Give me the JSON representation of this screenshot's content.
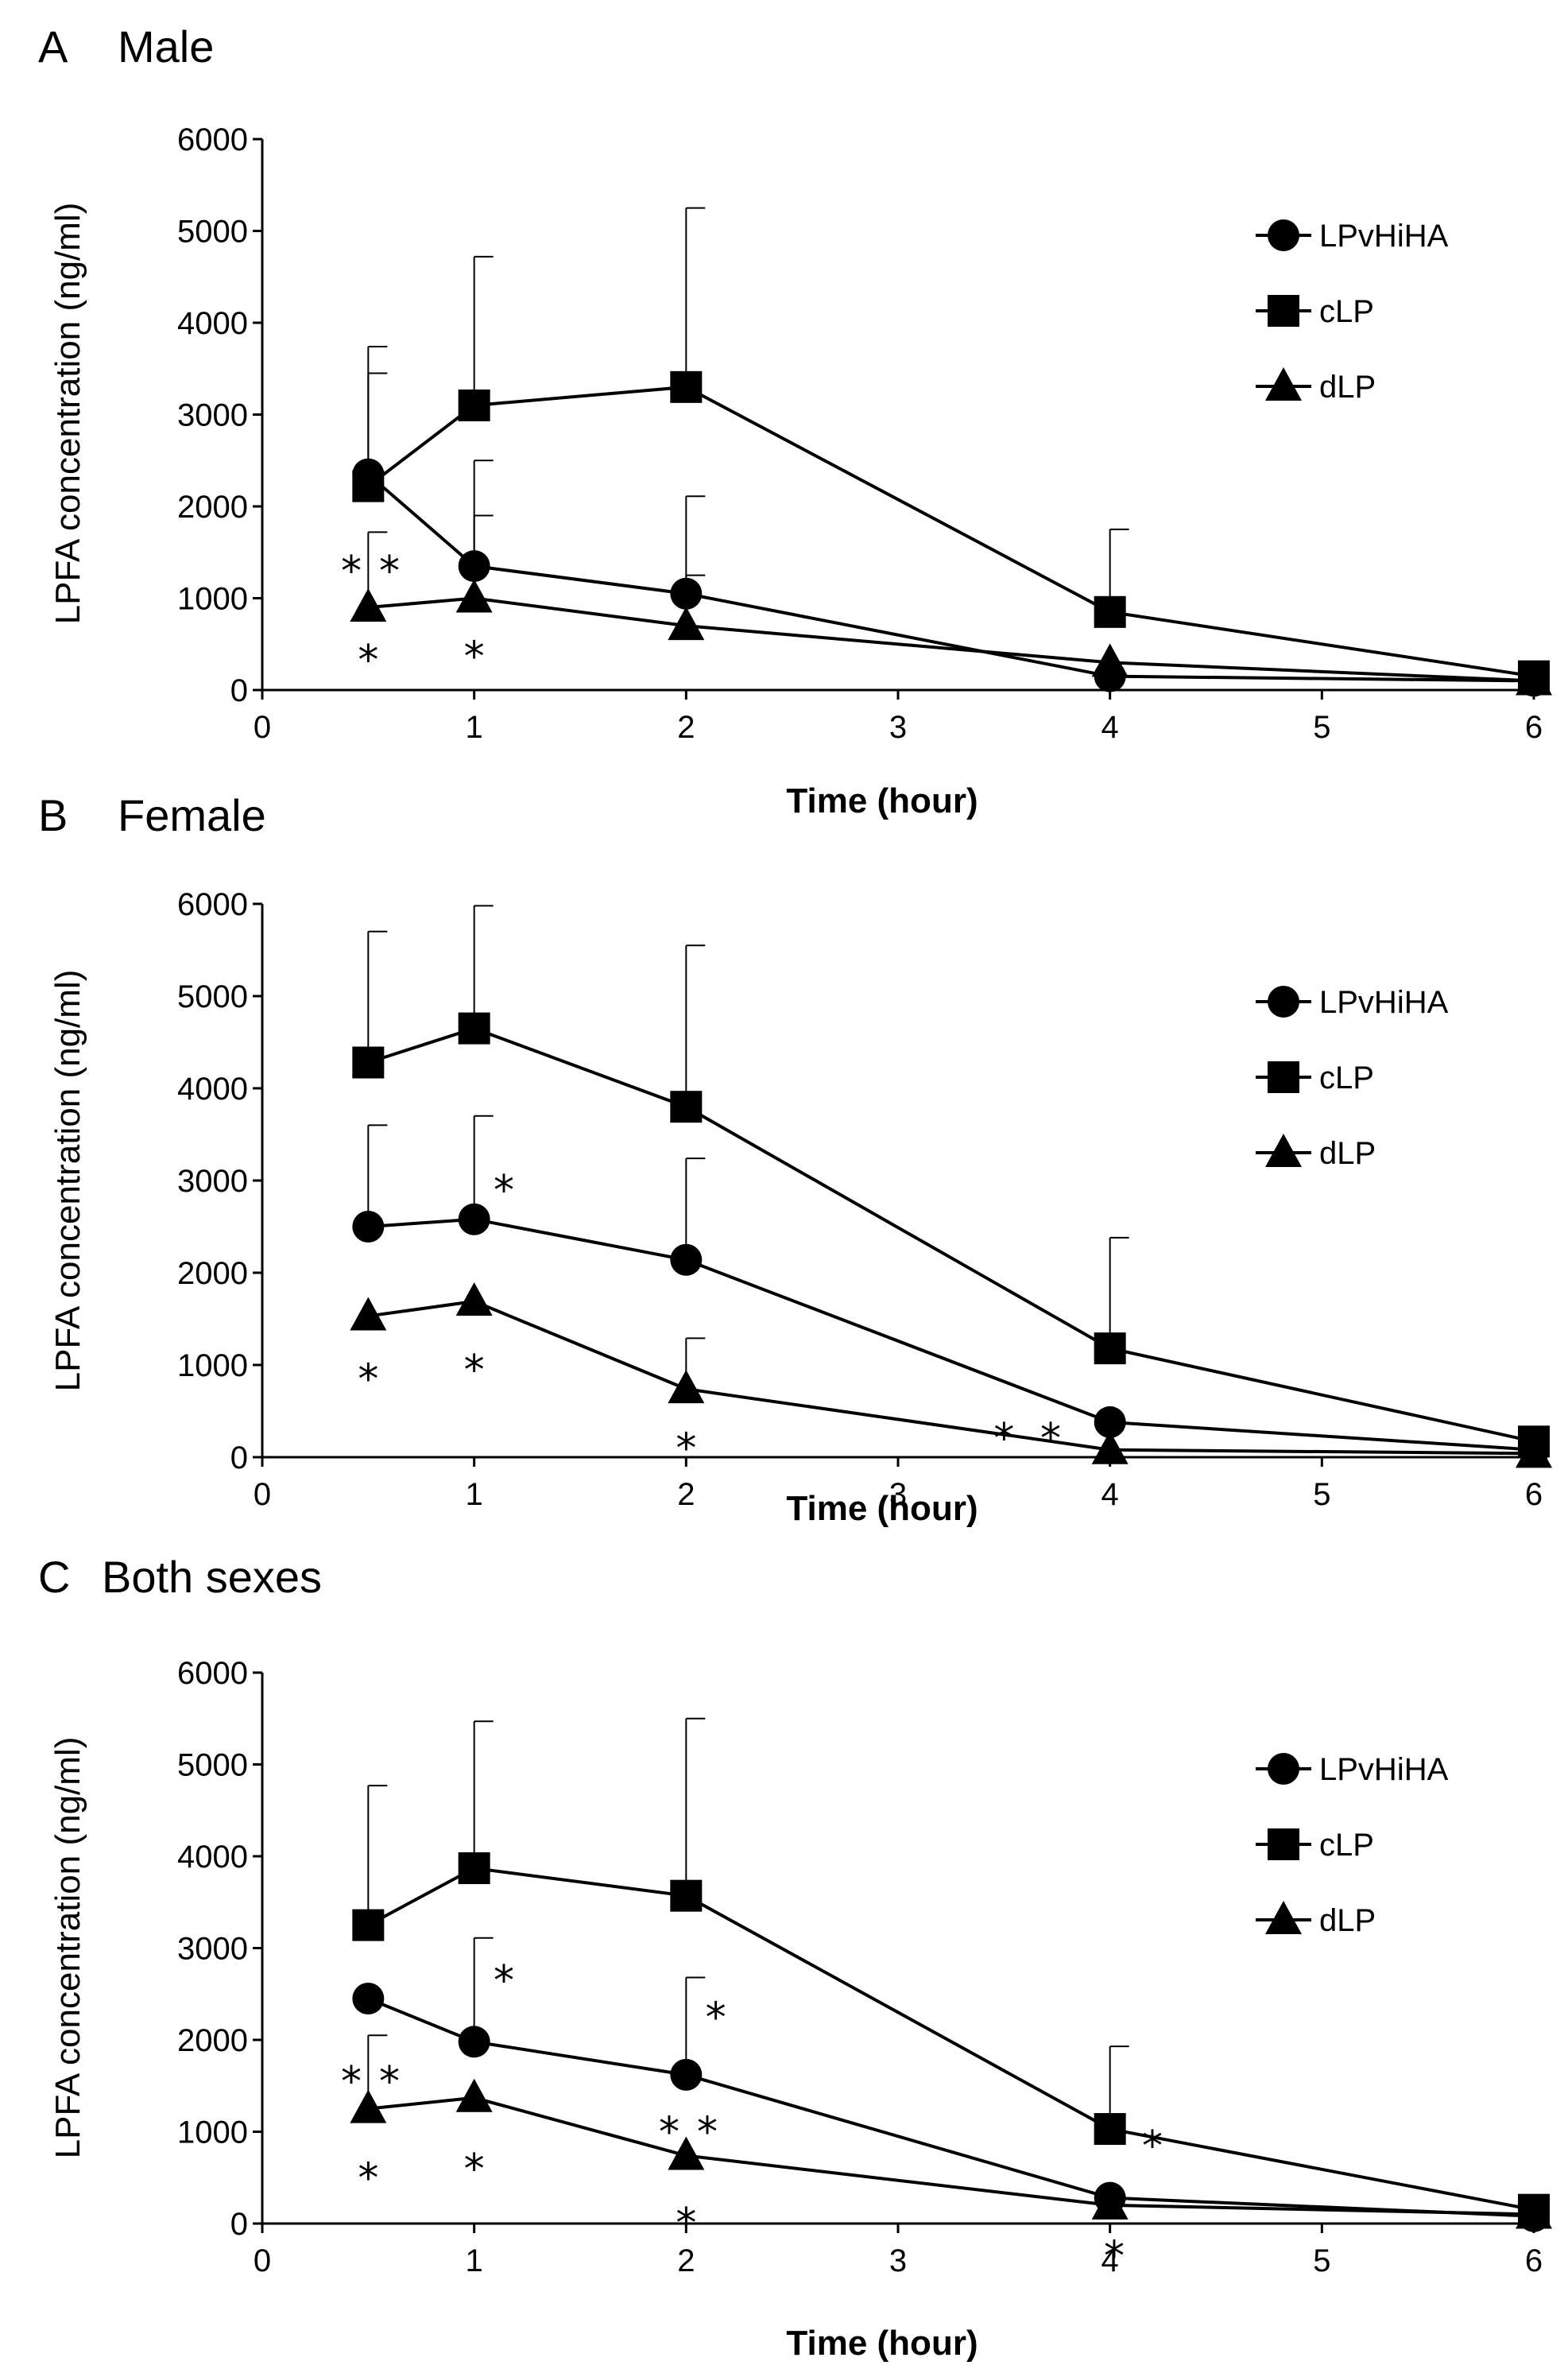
{
  "figure": {
    "panels": [
      {
        "letter": "A",
        "title": "Male"
      },
      {
        "letter": "B",
        "title": "Female"
      },
      {
        "letter": "C",
        "title": "Both sexes"
      }
    ]
  },
  "chart_data": [
    {
      "type": "line",
      "title": "A Male",
      "xlabel": "Time (hour)",
      "ylabel": "LPFA concentration (ng/ml)",
      "xlim": [
        0,
        6
      ],
      "ylim": [
        0,
        6000
      ],
      "x_ticks": [
        0,
        1,
        2,
        3,
        4,
        5,
        6
      ],
      "y_ticks": [
        0,
        1000,
        2000,
        3000,
        4000,
        5000,
        6000
      ],
      "grid": false,
      "legend_position": "top-right",
      "x": [
        0.5,
        1,
        2,
        4,
        6
      ],
      "series": [
        {
          "name": "LPvHiHA",
          "marker": "circle",
          "values": [
            2350,
            1350,
            1050,
            150,
            100
          ],
          "error": [
            1100,
            1150,
            1060,
            0,
            0
          ]
        },
        {
          "name": "cLP",
          "marker": "square",
          "values": [
            2220,
            3100,
            3300,
            850,
            150
          ],
          "error": [
            1520,
            1620,
            1950,
            900,
            0
          ]
        },
        {
          "name": "dLP",
          "marker": "triangle",
          "values": [
            900,
            1000,
            700,
            300,
            100
          ],
          "error": [
            820,
            900,
            550,
            0,
            0
          ]
        }
      ],
      "annotations": [
        {
          "text": "*",
          "x": 0.42,
          "y": 1350
        },
        {
          "text": "*",
          "x": 0.6,
          "y": 1350
        },
        {
          "text": "*",
          "x": 0.5,
          "y": 380
        },
        {
          "text": "*",
          "x": 1.0,
          "y": 420
        }
      ]
    },
    {
      "type": "line",
      "title": "B Female",
      "xlabel": "Time (hour)",
      "ylabel": "LPFA concentration (ng/ml)",
      "xlim": [
        0,
        6
      ],
      "ylim": [
        0,
        6000
      ],
      "x_ticks": [
        0,
        1,
        2,
        3,
        4,
        5,
        6
      ],
      "y_ticks": [
        0,
        1000,
        2000,
        3000,
        4000,
        5000,
        6000
      ],
      "grid": false,
      "legend_position": "top-right",
      "x": [
        0.5,
        1,
        2,
        4,
        6
      ],
      "series": [
        {
          "name": "LPvHiHA",
          "marker": "circle",
          "values": [
            2500,
            2580,
            2140,
            380,
            80
          ],
          "error": [
            1100,
            1120,
            1100,
            0,
            0
          ]
        },
        {
          "name": "cLP",
          "marker": "square",
          "values": [
            4280,
            4650,
            3800,
            1180,
            170
          ],
          "error": [
            1420,
            1330,
            1750,
            1200,
            0
          ]
        },
        {
          "name": "dLP",
          "marker": "triangle",
          "values": [
            1530,
            1690,
            740,
            80,
            40
          ],
          "error": [
            0,
            0,
            550,
            0,
            0
          ]
        }
      ],
      "annotations": [
        {
          "text": "*",
          "x": 1.14,
          "y": 2950
        },
        {
          "text": "*",
          "x": 0.5,
          "y": 900
        },
        {
          "text": "*",
          "x": 1.0,
          "y": 1000
        },
        {
          "text": "*",
          "x": 2.0,
          "y": 150
        },
        {
          "text": "*",
          "x": 3.5,
          "y": 260
        },
        {
          "text": "*",
          "x": 3.72,
          "y": 260
        }
      ]
    },
    {
      "type": "line",
      "title": "C Both sexes",
      "xlabel": "Time (hour)",
      "ylabel": "LPFA concentration (ng/ml)",
      "xlim": [
        0,
        6
      ],
      "ylim": [
        0,
        6000
      ],
      "x_ticks": [
        0,
        1,
        2,
        3,
        4,
        5,
        6
      ],
      "y_ticks": [
        0,
        1000,
        2000,
        3000,
        4000,
        5000,
        6000
      ],
      "grid": false,
      "legend_position": "top-right",
      "x": [
        0.5,
        1,
        2,
        4,
        6
      ],
      "series": [
        {
          "name": "LPvHiHA",
          "marker": "circle",
          "values": [
            2450,
            1980,
            1620,
            280,
            80
          ],
          "error": [
            0,
            1130,
            1060,
            0,
            0
          ]
        },
        {
          "name": "cLP",
          "marker": "square",
          "values": [
            3250,
            3870,
            3570,
            1030,
            150
          ],
          "error": [
            1520,
            1600,
            1930,
            900,
            0
          ]
        },
        {
          "name": "dLP",
          "marker": "triangle",
          "values": [
            1250,
            1370,
            740,
            200,
            100
          ],
          "error": [
            800,
            0,
            0,
            0,
            0
          ]
        }
      ],
      "annotations": [
        {
          "text": "*",
          "x": 1.14,
          "y": 2700
        },
        {
          "text": "*",
          "x": 2.14,
          "y": 2300
        },
        {
          "text": "*",
          "x": 0.42,
          "y": 1600
        },
        {
          "text": "*",
          "x": 0.6,
          "y": 1600
        },
        {
          "text": "*",
          "x": 1.92,
          "y": 1050
        },
        {
          "text": "*",
          "x": 2.1,
          "y": 1050
        },
        {
          "text": "*",
          "x": 0.5,
          "y": 550
        },
        {
          "text": "*",
          "x": 1.0,
          "y": 650
        },
        {
          "text": "*",
          "x": 2.0,
          "y": 60
        },
        {
          "text": "*",
          "x": 4.2,
          "y": 900
        },
        {
          "text": "*",
          "x": 4.02,
          "y": -300
        }
      ]
    }
  ]
}
